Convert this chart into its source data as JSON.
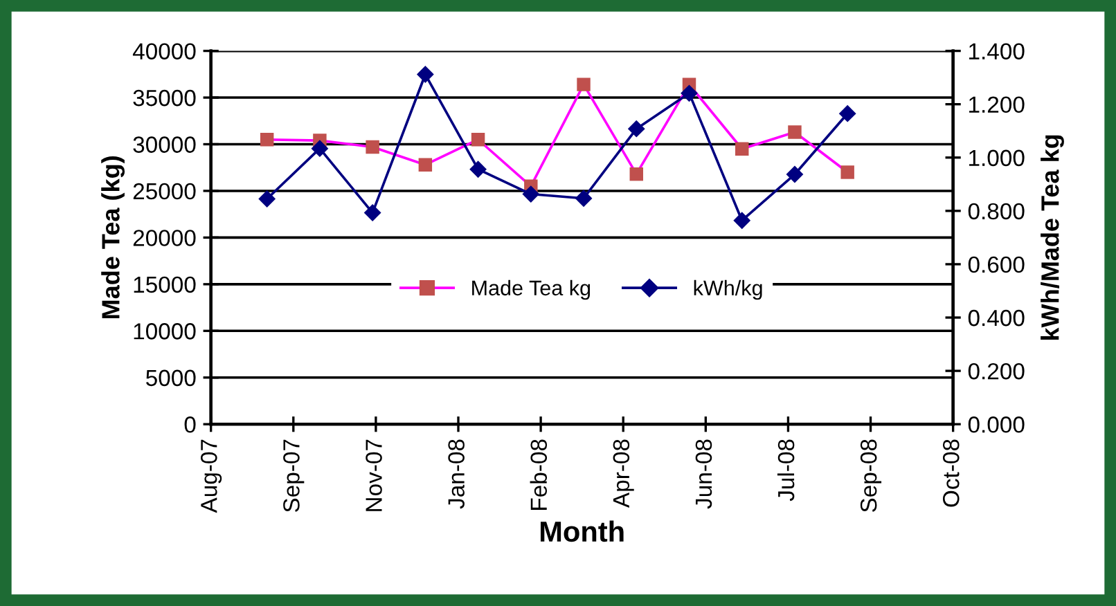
{
  "chart_data": {
    "type": "line",
    "xlabel": "Month",
    "ylabel": "Made Tea (kg)",
    "y2label": "kWh/Made Tea kg",
    "x": [
      "2007-09-09",
      "2007-10-11",
      "2007-11-12",
      "2007-12-14",
      "2008-01-15",
      "2008-02-16",
      "2008-03-19",
      "2008-04-20",
      "2008-05-22",
      "2008-06-23",
      "2008-07-25",
      "2008-08-26"
    ],
    "series": [
      {
        "name": "Made Tea kg",
        "color": "#ff00ff",
        "colors": [
          "#c0504d",
          "#c0504d",
          "#c0504d",
          "#c0504d",
          "#c0504d",
          "#c0504d",
          "#c0504d",
          "#c0504d",
          "#c0504d",
          "#c0504d",
          "#c0504d",
          "#c0504d"
        ],
        "marker": "square",
        "values": [
          30500,
          30400,
          29700,
          27800,
          30500,
          25500,
          36400,
          26800,
          36400,
          29500,
          31300,
          27000
        ]
      },
      {
        "name": "kWh/kg",
        "color": "#000080",
        "marker": "diamond",
        "axis": "y2",
        "values": [
          0.845,
          1.034,
          0.793,
          1.312,
          0.956,
          0.863,
          0.847,
          1.108,
          1.241,
          0.764,
          0.937,
          1.165
        ]
      }
    ],
    "xlim": [
      "2007-08-06",
      "2008-10-29"
    ],
    "xticks": [
      {
        "value": "2007-08-06",
        "label": "Aug-07"
      },
      {
        "value": "2007-09-25",
        "label": "Sep-07"
      },
      {
        "value": "2007-11-14",
        "label": "Nov-07"
      },
      {
        "value": "2008-01-03",
        "label": "Jan-08"
      },
      {
        "value": "2008-02-22",
        "label": "Feb-08"
      },
      {
        "value": "2008-04-12",
        "label": "Apr-08"
      },
      {
        "value": "2008-06-01",
        "label": "Jun-08"
      },
      {
        "value": "2008-07-21",
        "label": "Jul-08"
      },
      {
        "value": "2008-09-09",
        "label": "Sep-08"
      },
      {
        "value": "2008-10-29",
        "label": "Oct-08"
      }
    ],
    "ylim": [
      0,
      40000
    ],
    "yticks": [
      0,
      5000,
      10000,
      15000,
      20000,
      25000,
      30000,
      35000,
      40000
    ],
    "y2lim": [
      0,
      1.4
    ],
    "y2ticks": [
      {
        "value": 0,
        "label": "0.000"
      },
      {
        "value": 0.2,
        "label": "0.200"
      },
      {
        "value": 0.4,
        "label": "0.400"
      },
      {
        "value": 0.6,
        "label": "0.600"
      },
      {
        "value": 0.8,
        "label": "0.800"
      },
      {
        "value": 1.0,
        "label": "1.000"
      },
      {
        "value": 1.2,
        "label": "1.200"
      },
      {
        "value": 1.4,
        "label": "1.400"
      }
    ],
    "grid": "y",
    "legend": "center",
    "line_style": "solid"
  }
}
